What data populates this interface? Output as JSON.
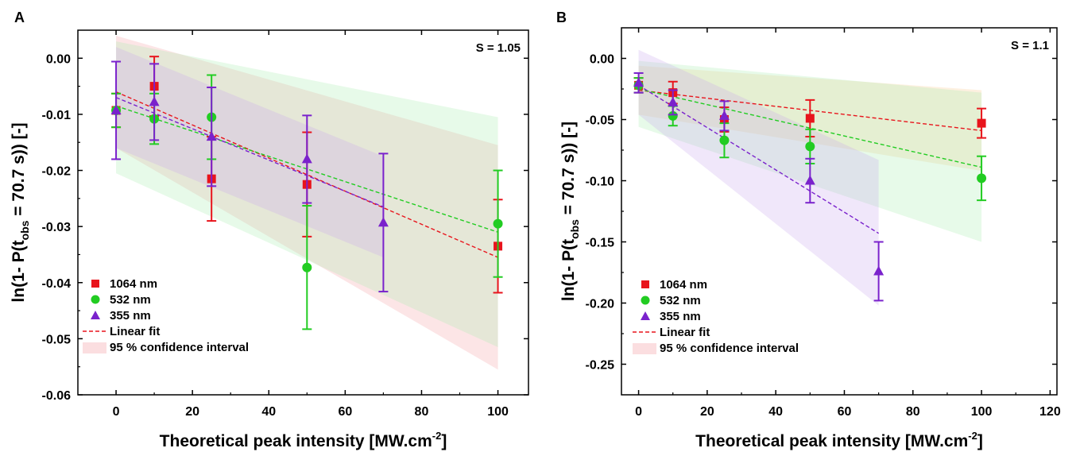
{
  "chart_data": [
    {
      "type": "scatter",
      "panel_label": "A",
      "annotation": "S = 1.05",
      "xlabel": "Theoretical peak intensity [MW.cm",
      "xlabel_sup": "-2",
      "xlabel_end": "]",
      "ylabel": {
        "pre": "ln(1- P(t",
        "sub": "obs",
        "post": " = 70.7 s)) [-]"
      },
      "xlim": [
        -10,
        108
      ],
      "ylim": [
        -0.06,
        0.005
      ],
      "xticks": [
        0,
        20,
        40,
        60,
        80,
        100
      ],
      "yticks": [
        0.0,
        -0.01,
        -0.02,
        -0.03,
        -0.04,
        -0.05,
        -0.06
      ],
      "xtick_labels": [
        "0",
        "20",
        "40",
        "60",
        "80",
        "100"
      ],
      "ytick_labels": [
        "0.00",
        "-0.01",
        "-0.02",
        "-0.03",
        "-0.04",
        "-0.05",
        "-0.06"
      ],
      "legend": {
        "placement": "bottom-left",
        "entries": [
          "1064 nm",
          "532 nm",
          "355 nm",
          "Linear fit",
          "95 % confidence interval"
        ]
      },
      "series": [
        {
          "name": "1064 nm",
          "color": "#e8141c",
          "marker": "square",
          "x": [
            0,
            10,
            25,
            50,
            100
          ],
          "y": [
            -0.0093,
            -0.005,
            -0.0215,
            -0.0225,
            -0.0335
          ],
          "err": [
            0.003,
            0.0053,
            0.0075,
            0.0093,
            0.0083
          ],
          "fit": [
            [
              0,
              -0.006
            ],
            [
              100,
              -0.0355
            ]
          ],
          "band": {
            "x": [
              0,
              100
            ],
            "upper": [
              0.004,
              -0.0155
            ],
            "lower": [
              -0.016,
              -0.0555
            ],
            "color": "#f4a0a6"
          }
        },
        {
          "name": "532 nm",
          "color": "#22cc22",
          "marker": "circle",
          "x": [
            0,
            10,
            25,
            50,
            100
          ],
          "y": [
            -0.0093,
            -0.0108,
            -0.0105,
            -0.0373,
            -0.0295
          ],
          "err": [
            0.003,
            0.0045,
            0.0075,
            0.011,
            0.0095
          ],
          "fit": [
            [
              0,
              -0.0085
            ],
            [
              100,
              -0.031
            ]
          ],
          "band": {
            "x": [
              0,
              100
            ],
            "upper": [
              0.003,
              -0.0105
            ],
            "lower": [
              -0.0205,
              -0.0515
            ],
            "color": "#a8ecb0"
          }
        },
        {
          "name": "355 nm",
          "color": "#7a22cc",
          "marker": "triangle",
          "x": [
            0,
            10,
            25,
            50,
            70
          ],
          "y": [
            -0.0093,
            -0.0078,
            -0.014,
            -0.018,
            -0.0293
          ],
          "err": [
            0.0087,
            0.0068,
            0.0088,
            0.0078,
            0.0123
          ],
          "fit": [
            [
              0,
              -0.007
            ],
            [
              70,
              -0.0265
            ]
          ],
          "band": {
            "x": [
              0,
              70
            ],
            "upper": [
              0.002,
              -0.0175
            ],
            "lower": [
              -0.016,
              -0.0355
            ],
            "color": "#c9a8ee"
          }
        }
      ]
    },
    {
      "type": "scatter",
      "panel_label": "B",
      "annotation": "S = 1.1",
      "xlabel": "Theoretical peak intensity [MW.cm",
      "xlabel_sup": "-2",
      "xlabel_end": "]",
      "ylabel": {
        "pre": "ln(1- P(t",
        "sub": "obs",
        "post": " = 70.7 s)) [-]"
      },
      "xlim": [
        -5,
        122
      ],
      "ylim": [
        -0.275,
        0.025
      ],
      "xticks": [
        0,
        20,
        40,
        60,
        80,
        100,
        120
      ],
      "yticks": [
        0.0,
        -0.05,
        -0.1,
        -0.15,
        -0.2,
        -0.25
      ],
      "xtick_labels": [
        "0",
        "20",
        "40",
        "60",
        "80",
        "100",
        "120"
      ],
      "ytick_labels": [
        "0.00",
        "-0.05",
        "-0.10",
        "-0.15",
        "-0.20",
        "-0.25"
      ],
      "legend": {
        "placement": "bottom-left",
        "entries": [
          "1064 nm",
          "532 nm",
          "355 nm",
          "Linear fit",
          "95 % confidence interval"
        ]
      },
      "series": [
        {
          "name": "1064 nm",
          "color": "#e8141c",
          "marker": "square",
          "x": [
            0,
            10,
            25,
            50,
            100
          ],
          "y": [
            -0.022,
            -0.028,
            -0.05,
            -0.049,
            -0.053
          ],
          "err": [
            0.006,
            0.009,
            0.01,
            0.015,
            0.012
          ],
          "fit": [
            [
              0,
              -0.026
            ],
            [
              100,
              -0.059
            ]
          ],
          "band": {
            "x": [
              0,
              100
            ],
            "upper": [
              -0.006,
              -0.026
            ],
            "lower": [
              -0.046,
              -0.092
            ],
            "color": "#f7c890"
          }
        },
        {
          "name": "532 nm",
          "color": "#22cc22",
          "marker": "circle",
          "x": [
            0,
            10,
            25,
            50,
            100
          ],
          "y": [
            -0.022,
            -0.047,
            -0.067,
            -0.072,
            -0.098
          ],
          "err": [
            0.006,
            0.008,
            0.014,
            0.014,
            0.018
          ],
          "fit": [
            [
              0,
              -0.025
            ],
            [
              100,
              -0.089
            ]
          ],
          "band": {
            "x": [
              0,
              100
            ],
            "upper": [
              -0.002,
              -0.028
            ],
            "lower": [
              -0.056,
              -0.15
            ],
            "color": "#a8ecb0"
          }
        },
        {
          "name": "355 nm",
          "color": "#7a22cc",
          "marker": "triangle",
          "x": [
            0,
            10,
            25,
            50,
            70
          ],
          "y": [
            -0.02,
            -0.036,
            -0.047,
            -0.1,
            -0.174
          ],
          "err": [
            0.008,
            0.01,
            0.012,
            0.018,
            0.024
          ],
          "fit": [
            [
              0,
              -0.022
            ],
            [
              70,
              -0.143
            ]
          ],
          "band": {
            "x": [
              0,
              70
            ],
            "upper": [
              0.007,
              -0.083
            ],
            "lower": [
              -0.046,
              -0.202
            ],
            "color": "#c9a8ee"
          }
        }
      ]
    }
  ]
}
